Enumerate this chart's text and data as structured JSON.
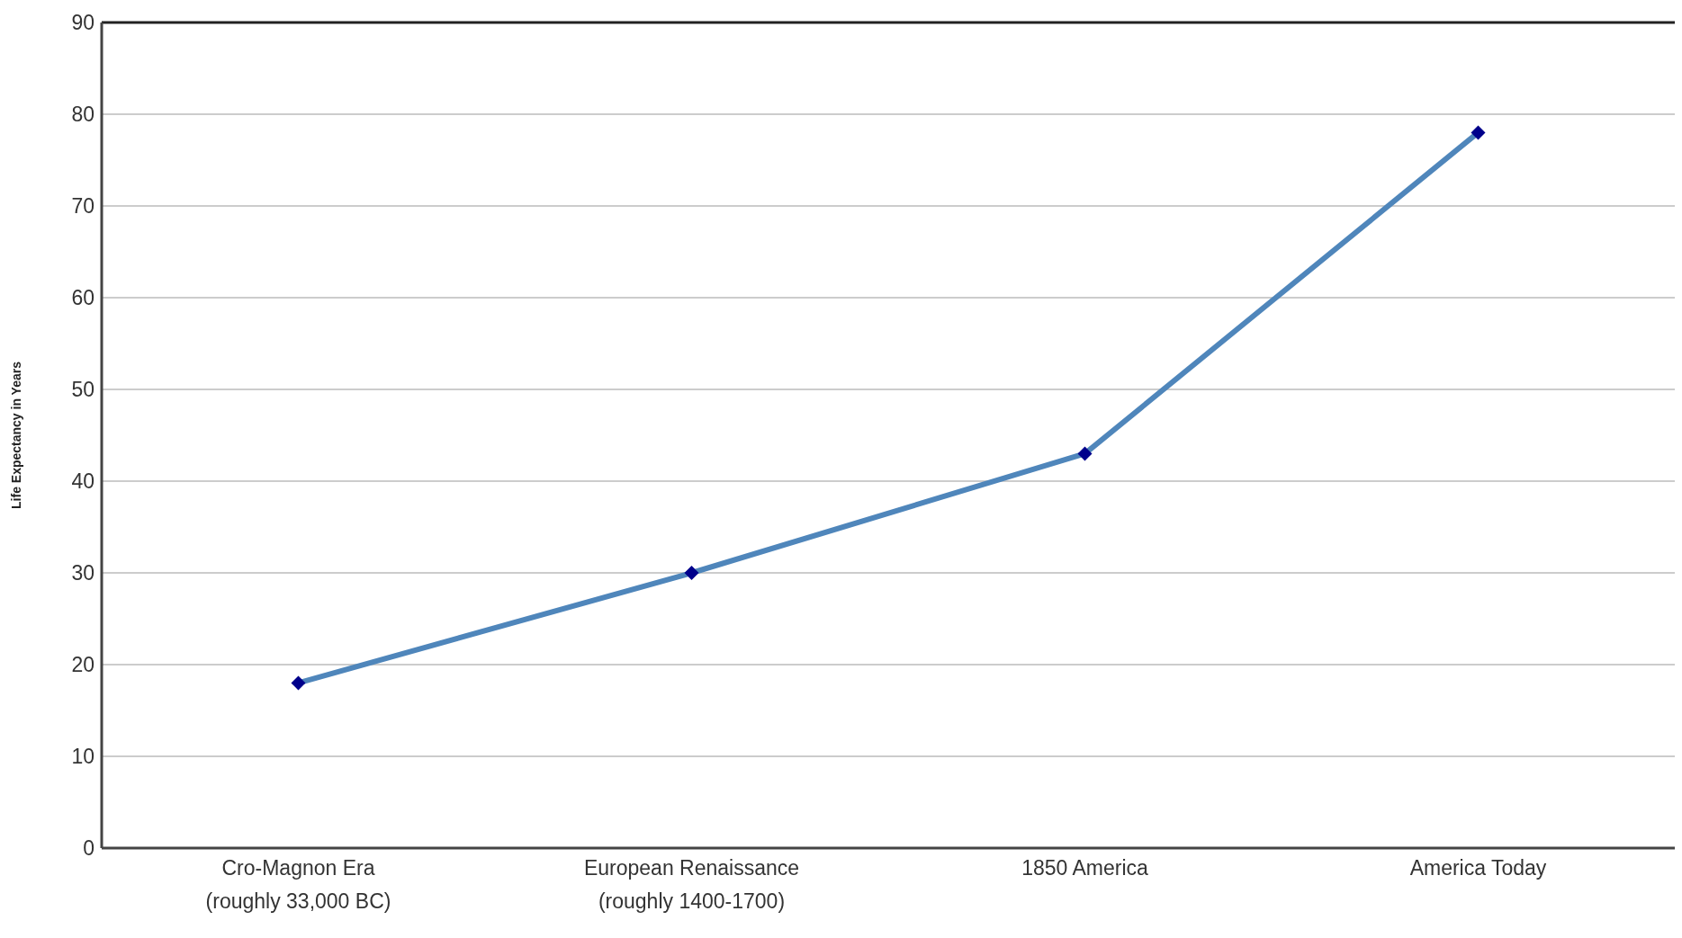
{
  "chart_data": {
    "type": "line",
    "ylabel": "Life Expectancy in Years",
    "categories": [
      "Cro-Magnon Era\n(roughly 33,000 BC)",
      "European Renaissance\n(roughly 1400-1700)",
      "1850 America",
      "America Today"
    ],
    "series": [
      {
        "color": "#4f86bb",
        "colors": [
          "#00008b",
          "#00008b",
          "#00008b",
          "#00008b"
        ],
        "values": [
          18,
          30,
          43,
          78
        ]
      }
    ],
    "ylim": [
      0,
      90
    ],
    "yticks": [
      0,
      10,
      20,
      30,
      40,
      50,
      60,
      70,
      80,
      90
    ],
    "grid": "y",
    "marker": "diamond",
    "line_style": "solid",
    "legend": false
  }
}
